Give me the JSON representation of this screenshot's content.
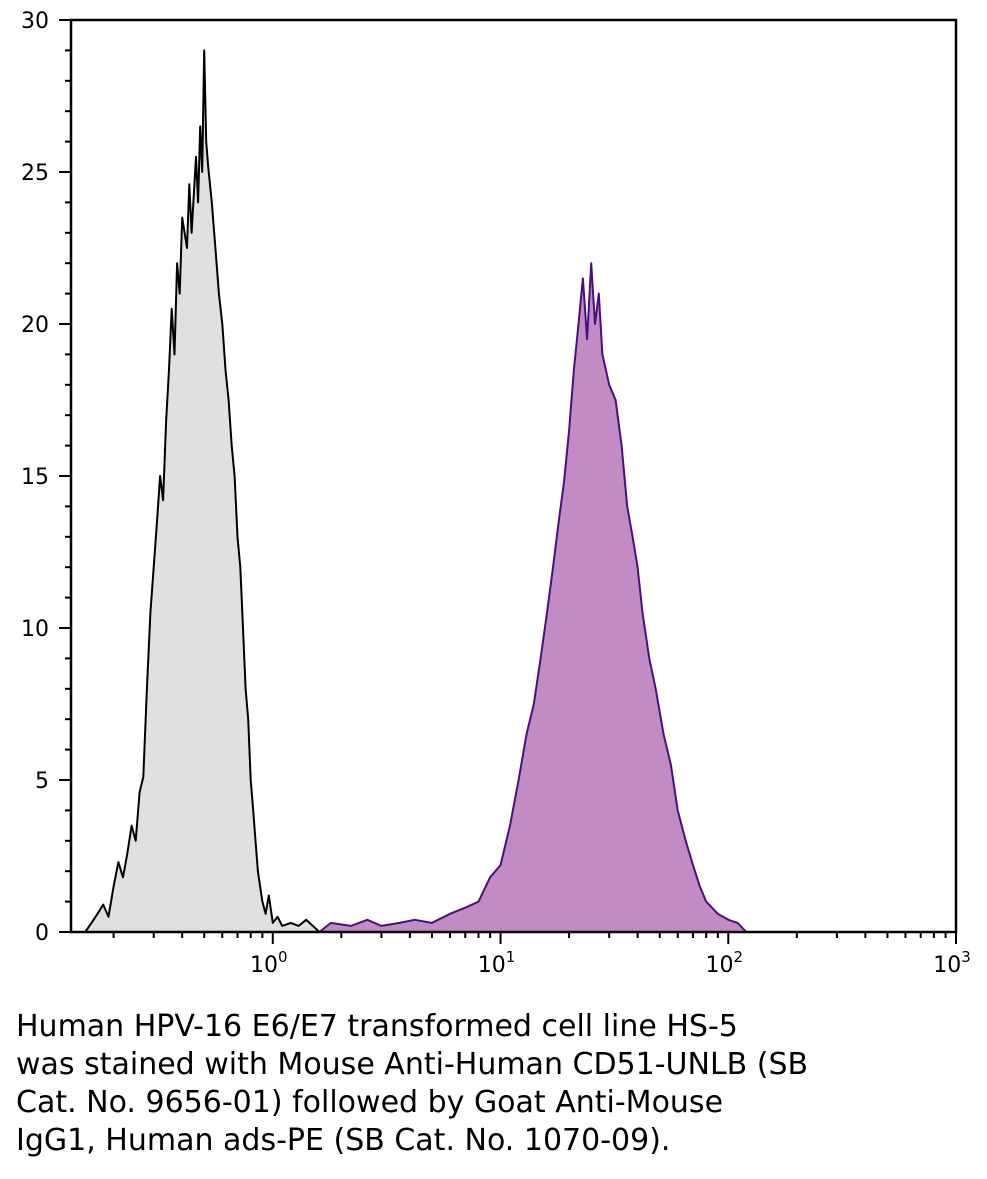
{
  "chart_data": {
    "type": "area",
    "x_scale": "log",
    "xlim": [
      0.13,
      1000
    ],
    "ylim": [
      0,
      30
    ],
    "y_ticks": [
      0,
      5,
      10,
      15,
      20,
      25,
      30
    ],
    "y_tick_labels": [
      "0",
      "5",
      "10",
      "15",
      "20",
      "25",
      "30"
    ],
    "x_ticks": [
      1,
      10,
      100,
      1000
    ],
    "x_tick_labels": [
      {
        "base": "10",
        "exp": "0"
      },
      {
        "base": "10",
        "exp": "1"
      },
      {
        "base": "10",
        "exp": "2"
      },
      {
        "base": "10",
        "exp": "3"
      }
    ],
    "grid": false,
    "series": [
      {
        "role": "control",
        "fill": "#e0e0e0",
        "stroke": "#000000",
        "points": [
          [
            0.15,
            0
          ],
          [
            0.16,
            0.3
          ],
          [
            0.17,
            0.6
          ],
          [
            0.18,
            0.9
          ],
          [
            0.19,
            0.5
          ],
          [
            0.2,
            1.5
          ],
          [
            0.21,
            2.3
          ],
          [
            0.22,
            1.8
          ],
          [
            0.23,
            2.6
          ],
          [
            0.24,
            3.5
          ],
          [
            0.25,
            3.0
          ],
          [
            0.26,
            4.6
          ],
          [
            0.27,
            5.1
          ],
          [
            0.28,
            8.0
          ],
          [
            0.29,
            10.5
          ],
          [
            0.3,
            12.0
          ],
          [
            0.31,
            13.5
          ],
          [
            0.32,
            15.0
          ],
          [
            0.33,
            14.2
          ],
          [
            0.34,
            16.8
          ],
          [
            0.35,
            18.5
          ],
          [
            0.36,
            20.5
          ],
          [
            0.37,
            19.0
          ],
          [
            0.38,
            22.0
          ],
          [
            0.39,
            21.0
          ],
          [
            0.4,
            23.5
          ],
          [
            0.42,
            22.5
          ],
          [
            0.43,
            24.6
          ],
          [
            0.44,
            23.0
          ],
          [
            0.46,
            25.5
          ],
          [
            0.47,
            24.0
          ],
          [
            0.48,
            26.5
          ],
          [
            0.49,
            25.0
          ],
          [
            0.5,
            29.0
          ],
          [
            0.51,
            26.0
          ],
          [
            0.52,
            25.2
          ],
          [
            0.54,
            24.0
          ],
          [
            0.56,
            22.5
          ],
          [
            0.58,
            21.0
          ],
          [
            0.6,
            20.0
          ],
          [
            0.62,
            18.5
          ],
          [
            0.64,
            17.5
          ],
          [
            0.66,
            16.0
          ],
          [
            0.68,
            15.0
          ],
          [
            0.7,
            13.0
          ],
          [
            0.72,
            12.0
          ],
          [
            0.74,
            10.0
          ],
          [
            0.76,
            8.0
          ],
          [
            0.78,
            7.0
          ],
          [
            0.8,
            5.0
          ],
          [
            0.82,
            4.0
          ],
          [
            0.84,
            3.0
          ],
          [
            0.86,
            2.0
          ],
          [
            0.88,
            1.5
          ],
          [
            0.9,
            1.0
          ],
          [
            0.93,
            0.6
          ],
          [
            0.96,
            1.2
          ],
          [
            1.0,
            0.3
          ],
          [
            1.05,
            0.5
          ],
          [
            1.1,
            0.2
          ],
          [
            1.2,
            0.3
          ],
          [
            1.3,
            0.2
          ],
          [
            1.4,
            0.4
          ],
          [
            1.5,
            0.2
          ],
          [
            1.6,
            0
          ]
        ]
      },
      {
        "role": "stained",
        "fill": "#c28bc4",
        "stroke": "#4b0f7c",
        "points": [
          [
            1.6,
            0
          ],
          [
            1.8,
            0.3
          ],
          [
            2.2,
            0.2
          ],
          [
            2.6,
            0.4
          ],
          [
            3.0,
            0.2
          ],
          [
            3.6,
            0.3
          ],
          [
            4.2,
            0.4
          ],
          [
            5.0,
            0.3
          ],
          [
            6.0,
            0.6
          ],
          [
            7.0,
            0.8
          ],
          [
            8.0,
            1.0
          ],
          [
            9.0,
            1.8
          ],
          [
            10.0,
            2.2
          ],
          [
            11.0,
            3.5
          ],
          [
            12.0,
            5.0
          ],
          [
            13.0,
            6.5
          ],
          [
            14.0,
            7.5
          ],
          [
            15.0,
            9.0
          ],
          [
            16.0,
            10.5
          ],
          [
            17.0,
            12.0
          ],
          [
            18.0,
            13.5
          ],
          [
            19.0,
            14.8
          ],
          [
            20.0,
            16.5
          ],
          [
            21.0,
            18.5
          ],
          [
            22.0,
            20.0
          ],
          [
            23.0,
            21.5
          ],
          [
            24.0,
            19.5
          ],
          [
            25.0,
            22.0
          ],
          [
            26.0,
            20.0
          ],
          [
            27.0,
            21.0
          ],
          [
            28.0,
            19.0
          ],
          [
            30.0,
            18.0
          ],
          [
            32.0,
            17.5
          ],
          [
            34.0,
            16.0
          ],
          [
            36.0,
            14.0
          ],
          [
            38.0,
            13.0
          ],
          [
            40.0,
            12.0
          ],
          [
            42.0,
            10.5
          ],
          [
            45.0,
            9.0
          ],
          [
            48.0,
            8.0
          ],
          [
            52.0,
            6.5
          ],
          [
            56.0,
            5.5
          ],
          [
            60.0,
            4.0
          ],
          [
            65.0,
            3.0
          ],
          [
            70.0,
            2.2
          ],
          [
            75.0,
            1.5
          ],
          [
            80.0,
            1.0
          ],
          [
            90.0,
            0.6
          ],
          [
            100.0,
            0.4
          ],
          [
            110.0,
            0.3
          ],
          [
            120.0,
            0
          ]
        ]
      }
    ]
  },
  "caption": {
    "line1": "Human HPV-16 E6/E7 transformed cell line HS-5",
    "line2": "was stained with Mouse Anti-Human CD51-UNLB (SB",
    "line3": "Cat. No. 9656-01) followed by Goat Anti-Mouse",
    "line4": "IgG1, Human ads-PE (SB Cat. No. 1070-09)."
  }
}
